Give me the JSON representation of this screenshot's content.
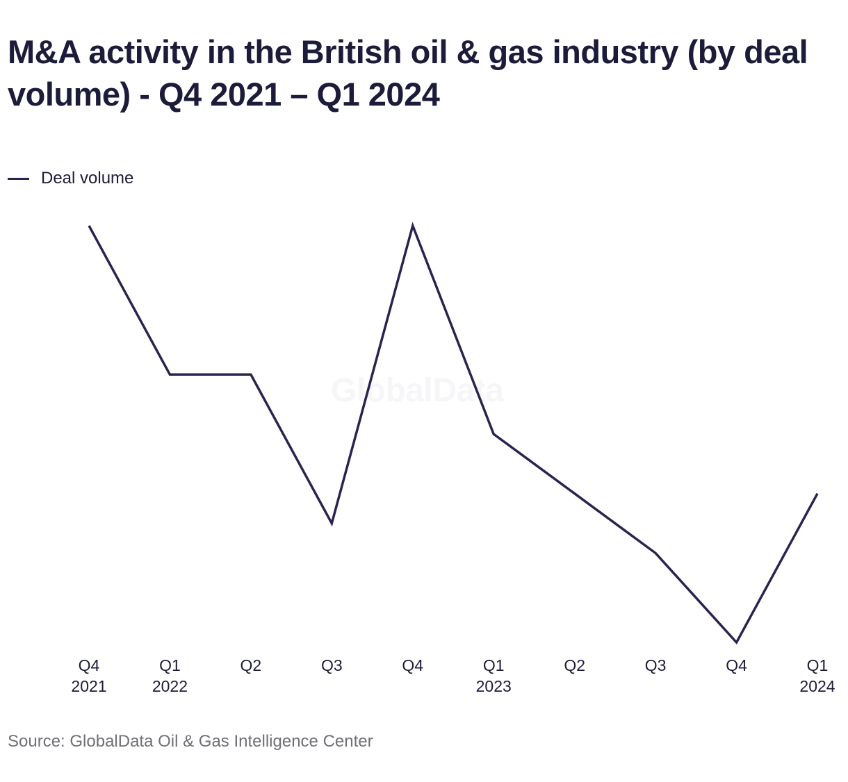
{
  "title": "M&A activity in the British oil & gas industry (by deal volume) - Q4 2021 – Q1 2024",
  "legend": {
    "label": "Deal volume"
  },
  "watermark": "GlobalData",
  "source": "Source: GlobalData Oil & Gas Intelligence Center",
  "colors": {
    "series": "#2d2150",
    "text": "#1c1b3a",
    "source": "#6f6f78"
  },
  "chart_data": {
    "type": "line",
    "title": "M&A activity in the British oil & gas industry (by deal volume) - Q4 2021 – Q1 2024",
    "xlabel": "",
    "ylabel": "",
    "categories": [
      [
        "Q4",
        "2021"
      ],
      [
        "Q1",
        "2022"
      ],
      [
        "Q2"
      ],
      [
        "Q3"
      ],
      [
        "Q4"
      ],
      [
        "Q1",
        "2023"
      ],
      [
        "Q2"
      ],
      [
        "Q3"
      ],
      [
        "Q4"
      ],
      [
        "Q1",
        "2024"
      ]
    ],
    "series": [
      {
        "name": "Deal volume",
        "values": [
          15,
          10,
          10,
          5,
          15,
          8,
          6,
          4,
          1,
          6
        ]
      }
    ],
    "ylim": [
      1,
      15
    ],
    "grid": false,
    "y_axis_labels": false,
    "legend_position": "top-left"
  }
}
